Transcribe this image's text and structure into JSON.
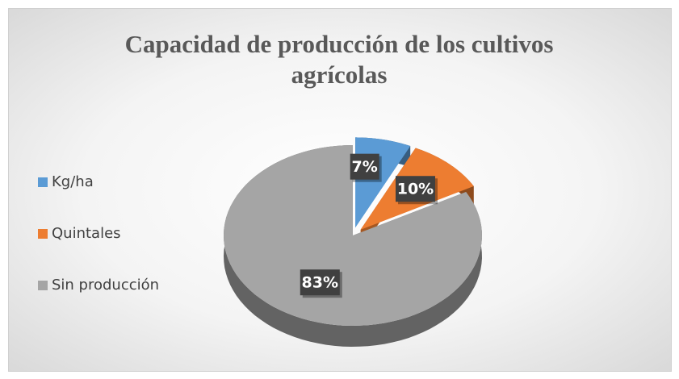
{
  "chart_data": {
    "type": "pie",
    "title": "Capacidad de producción de los cultivos agrícolas",
    "categories": [
      "Kg/ha",
      "Quintales",
      "Sin producción"
    ],
    "values": [
      7,
      10,
      83
    ],
    "value_labels": [
      "7%",
      "10%",
      "83%"
    ],
    "colors": [
      "#5b9bd5",
      "#ed7d31",
      "#a5a5a5"
    ],
    "legend": "left"
  }
}
